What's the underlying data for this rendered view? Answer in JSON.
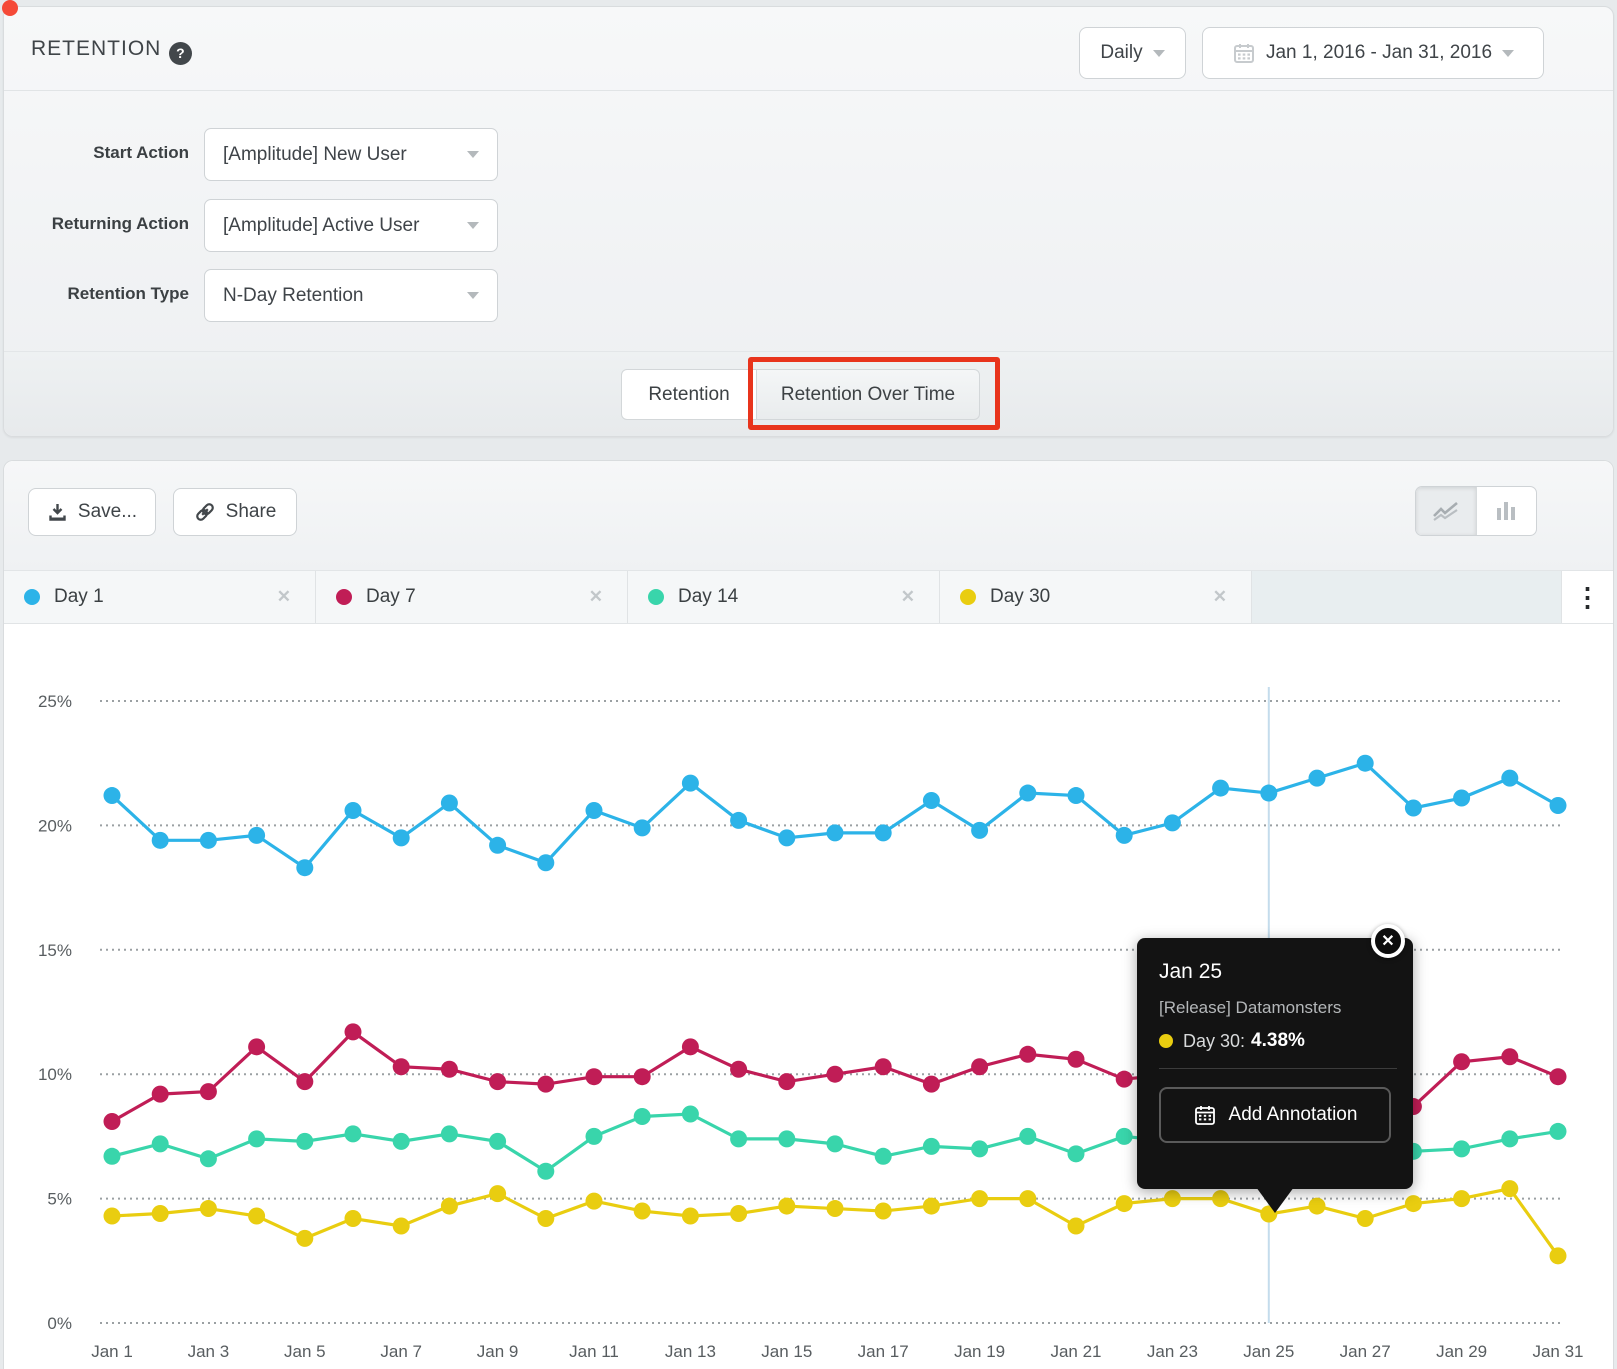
{
  "header": {
    "title": "RETENTION",
    "granularity": "Daily",
    "date_range": "Jan 1, 2016 - Jan 31, 2016"
  },
  "icons": {
    "help": "?",
    "chip_close": "✕",
    "tooltip_close": "✕",
    "kebab": "⋮"
  },
  "filters": {
    "rows": [
      {
        "label": "Start Action",
        "value": "[Amplitude] New User"
      },
      {
        "label": "Returning Action",
        "value": "[Amplitude] Active User"
      },
      {
        "label": "Retention Type",
        "value": "N-Day Retention"
      }
    ]
  },
  "tabs": [
    {
      "label": "Retention",
      "highlighted": false
    },
    {
      "label": "Retention Over Time",
      "highlighted": true
    }
  ],
  "toolbar": {
    "save_label": "Save...",
    "share_label": "Share"
  },
  "legend": [
    {
      "label": "Day 1",
      "color": "#2cb3e8"
    },
    {
      "label": "Day 7",
      "color": "#c01d56"
    },
    {
      "label": "Day 14",
      "color": "#39d5ab"
    },
    {
      "label": "Day 30",
      "color": "#e9cd10"
    }
  ],
  "tooltip": {
    "date": "Jan 25",
    "annotation": "[Release] Datamonsters",
    "series_label": "Day 30:",
    "value": "4.38%",
    "dot_color": "#e9cd10",
    "button_label": "Add Annotation"
  },
  "chart_data": {
    "type": "line",
    "title": "Retention Over Time",
    "xlabel": "",
    "ylabel": "",
    "ylim": [
      0,
      25
    ],
    "yticks": [
      "0%",
      "5%",
      "10%",
      "15%",
      "20%",
      "25%"
    ],
    "grid": "horizontal-dotted",
    "legend_position": "top-strip",
    "x": [
      "Jan 1",
      "Jan 2",
      "Jan 3",
      "Jan 4",
      "Jan 5",
      "Jan 6",
      "Jan 7",
      "Jan 8",
      "Jan 9",
      "Jan 10",
      "Jan 11",
      "Jan 12",
      "Jan 13",
      "Jan 14",
      "Jan 15",
      "Jan 16",
      "Jan 17",
      "Jan 18",
      "Jan 19",
      "Jan 20",
      "Jan 21",
      "Jan 22",
      "Jan 23",
      "Jan 24",
      "Jan 25",
      "Jan 26",
      "Jan 27",
      "Jan 28",
      "Jan 29",
      "Jan 30",
      "Jan 31"
    ],
    "x_tick_every": 2,
    "annotation_line_x": "Jan 25",
    "series": [
      {
        "name": "Day 1",
        "color": "#2cb3e8",
        "values": [
          21.2,
          19.4,
          19.4,
          19.6,
          18.3,
          20.6,
          19.5,
          20.9,
          19.2,
          18.5,
          20.6,
          19.9,
          21.7,
          20.2,
          19.5,
          19.7,
          19.7,
          21.0,
          19.8,
          21.3,
          21.2,
          19.6,
          20.1,
          21.5,
          21.3,
          21.9,
          22.5,
          20.7,
          21.1,
          21.9,
          20.8
        ]
      },
      {
        "name": "Day 7",
        "color": "#c01d56",
        "values": [
          8.1,
          9.2,
          9.3,
          11.1,
          9.7,
          11.7,
          10.3,
          10.2,
          9.7,
          9.6,
          9.9,
          9.9,
          11.1,
          10.2,
          9.7,
          10.0,
          10.3,
          9.6,
          10.3,
          10.8,
          10.6,
          9.8,
          10.0,
          10.1,
          10.0,
          9.7,
          9.2,
          8.7,
          10.5,
          10.7,
          9.9
        ]
      },
      {
        "name": "Day 14",
        "color": "#39d5ab",
        "values": [
          6.7,
          7.2,
          6.6,
          7.4,
          7.3,
          7.6,
          7.3,
          7.6,
          7.3,
          6.1,
          7.5,
          8.3,
          8.4,
          7.4,
          7.4,
          7.2,
          6.7,
          7.1,
          7.0,
          7.5,
          6.8,
          7.5,
          7.3,
          7.2,
          7.0,
          7.0,
          6.9,
          6.9,
          7.0,
          7.4,
          7.7
        ]
      },
      {
        "name": "Day 30",
        "color": "#e9cd10",
        "values": [
          4.3,
          4.4,
          4.6,
          4.3,
          3.4,
          4.2,
          3.9,
          4.7,
          5.2,
          4.2,
          4.9,
          4.5,
          4.3,
          4.4,
          4.7,
          4.6,
          4.5,
          4.7,
          5.0,
          5.0,
          3.9,
          4.8,
          5.0,
          5.0,
          4.38,
          4.7,
          4.2,
          4.8,
          5.0,
          5.4,
          2.7
        ]
      }
    ]
  }
}
